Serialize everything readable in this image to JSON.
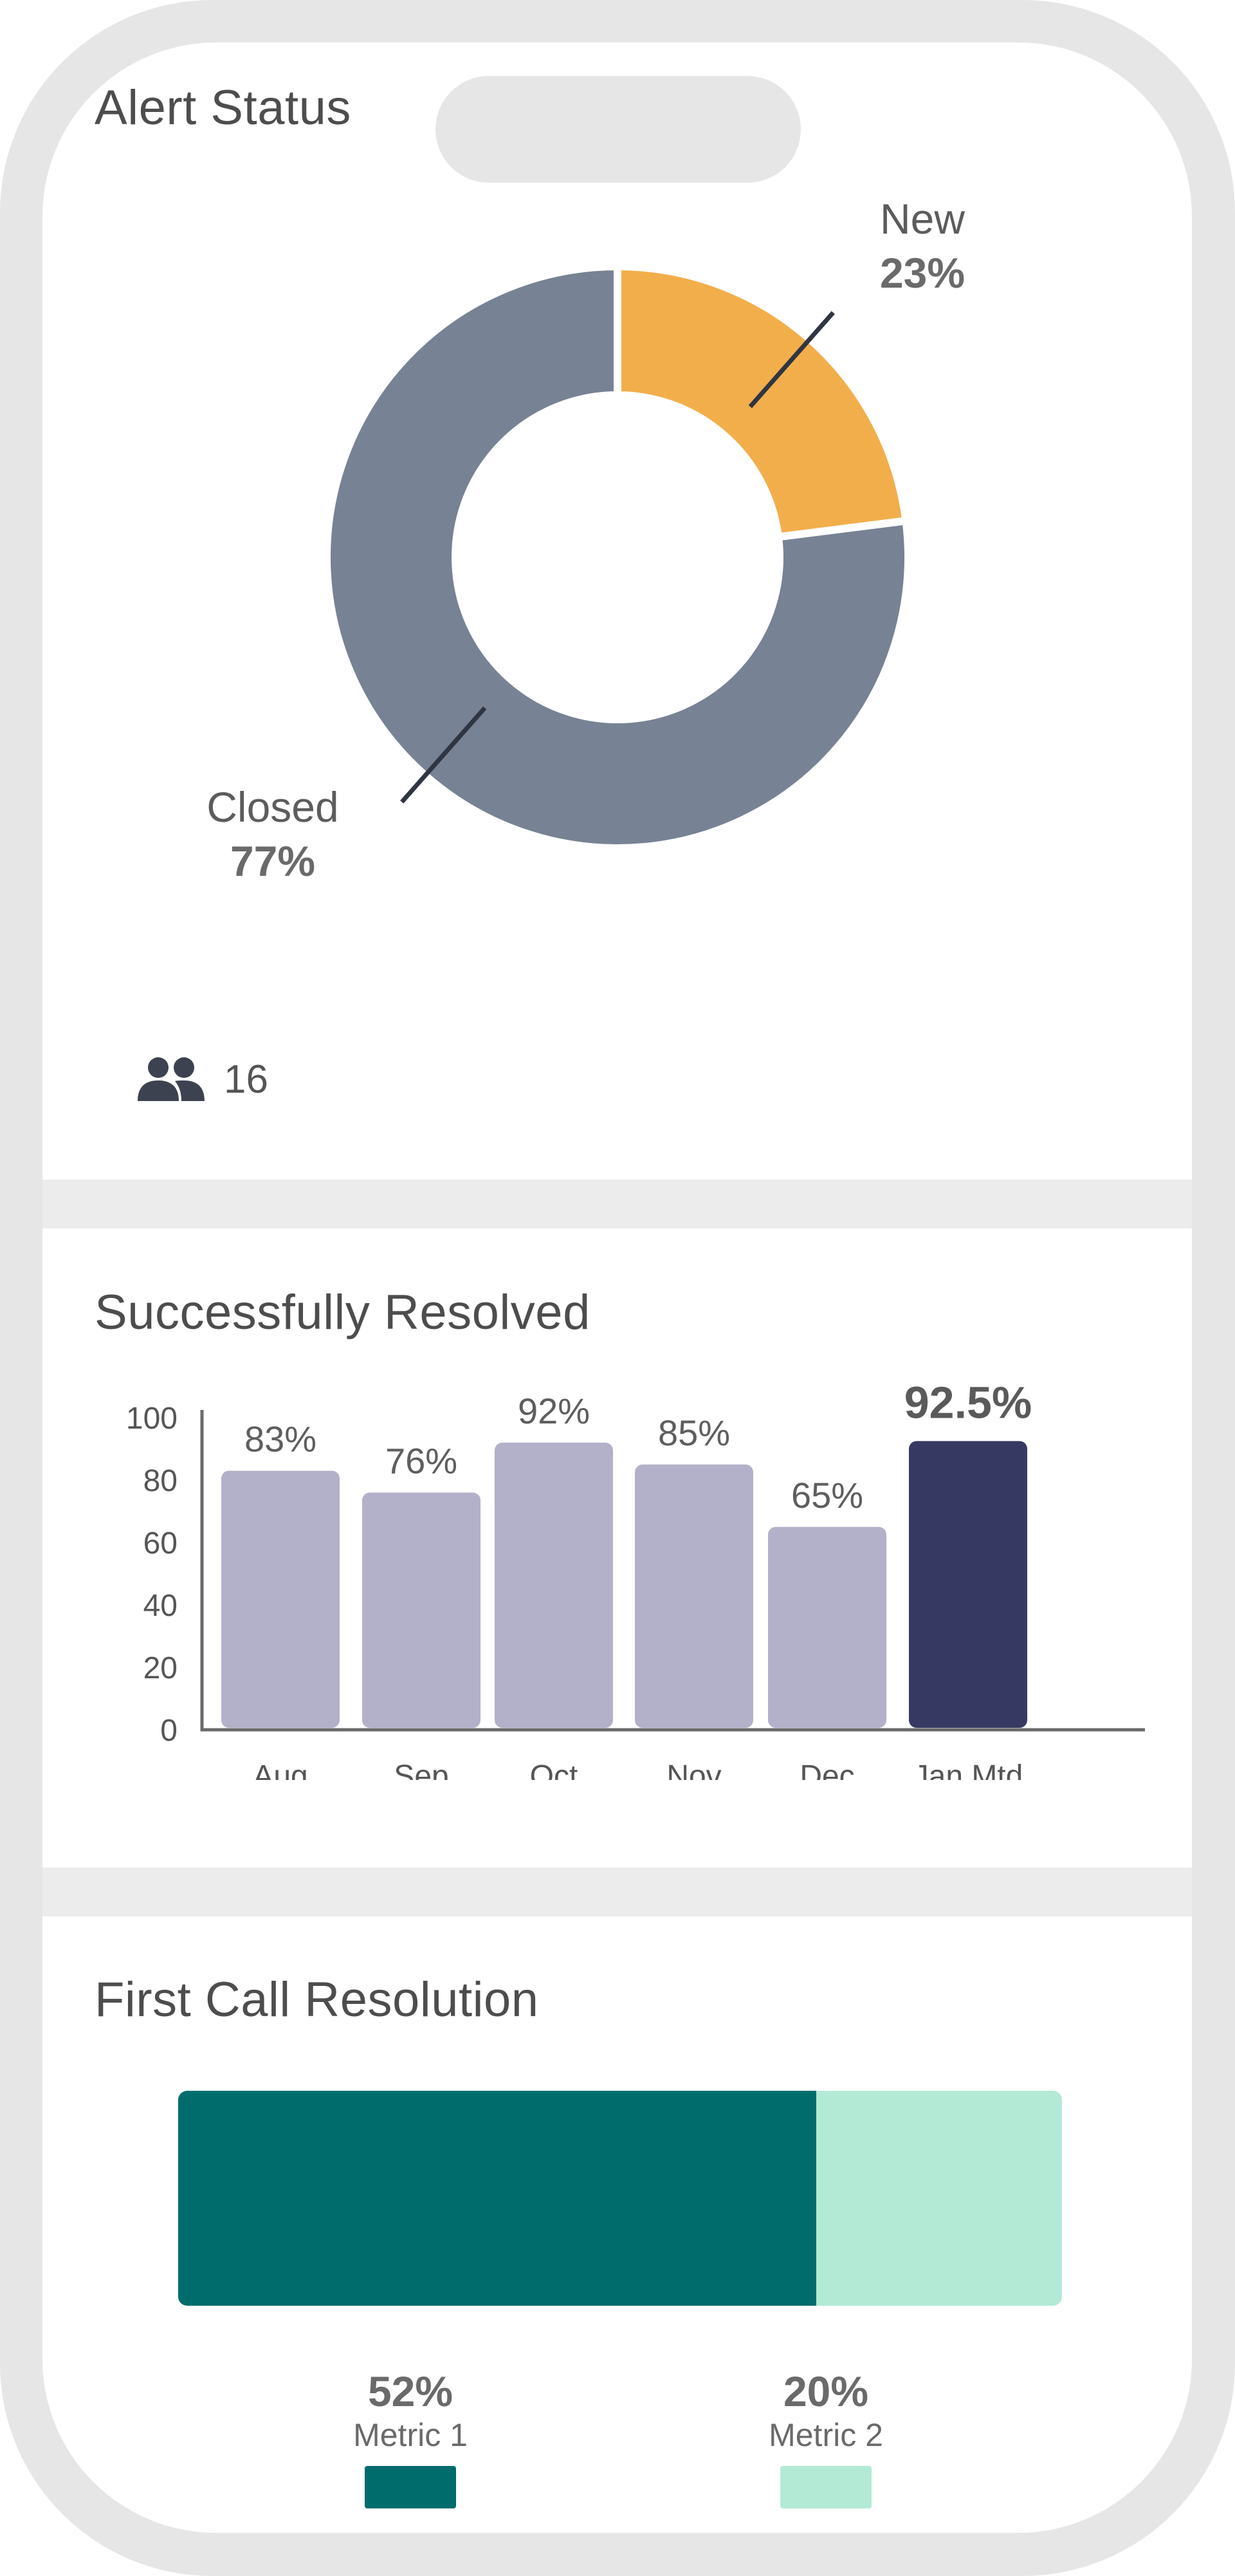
{
  "alert_status": {
    "title": "Alert Status",
    "users_count": "16",
    "users_icon": "users-icon",
    "chart_data": {
      "type": "pie",
      "variant": "donut",
      "slices": [
        {
          "label": "New",
          "value": 23,
          "display": "23%",
          "color": "#F2AE4B"
        },
        {
          "label": "Closed",
          "value": 77,
          "display": "77%",
          "color": "#778294"
        }
      ]
    }
  },
  "resolved": {
    "title": "Successfully Resolved",
    "chart_data": {
      "type": "bar",
      "categories": [
        "Aug",
        "Sep",
        "Oct",
        "Nov",
        "Dec",
        "Jan Mtd"
      ],
      "values": [
        83,
        76,
        92,
        85,
        65,
        92.5
      ],
      "labels": [
        "83%",
        "76%",
        "92%",
        "85%",
        "65%",
        "92.5%"
      ],
      "yticks": [
        "0",
        "20",
        "40",
        "60",
        "80",
        "100"
      ],
      "ylim": [
        0,
        100
      ],
      "bar_color": "#B3B0C9",
      "highlight_color": "#363A62",
      "highlight_index": 5
    }
  },
  "first_call": {
    "title": "First Call Resolution",
    "chart_data": {
      "type": "bar",
      "variant": "stacked-horizontal",
      "series": [
        {
          "name": "Metric 1",
          "value": 52,
          "display": "52%",
          "color": "#006C6C"
        },
        {
          "name": "Metric 2",
          "value": 20,
          "display": "20%",
          "color": "#B3EAD6"
        }
      ]
    }
  }
}
